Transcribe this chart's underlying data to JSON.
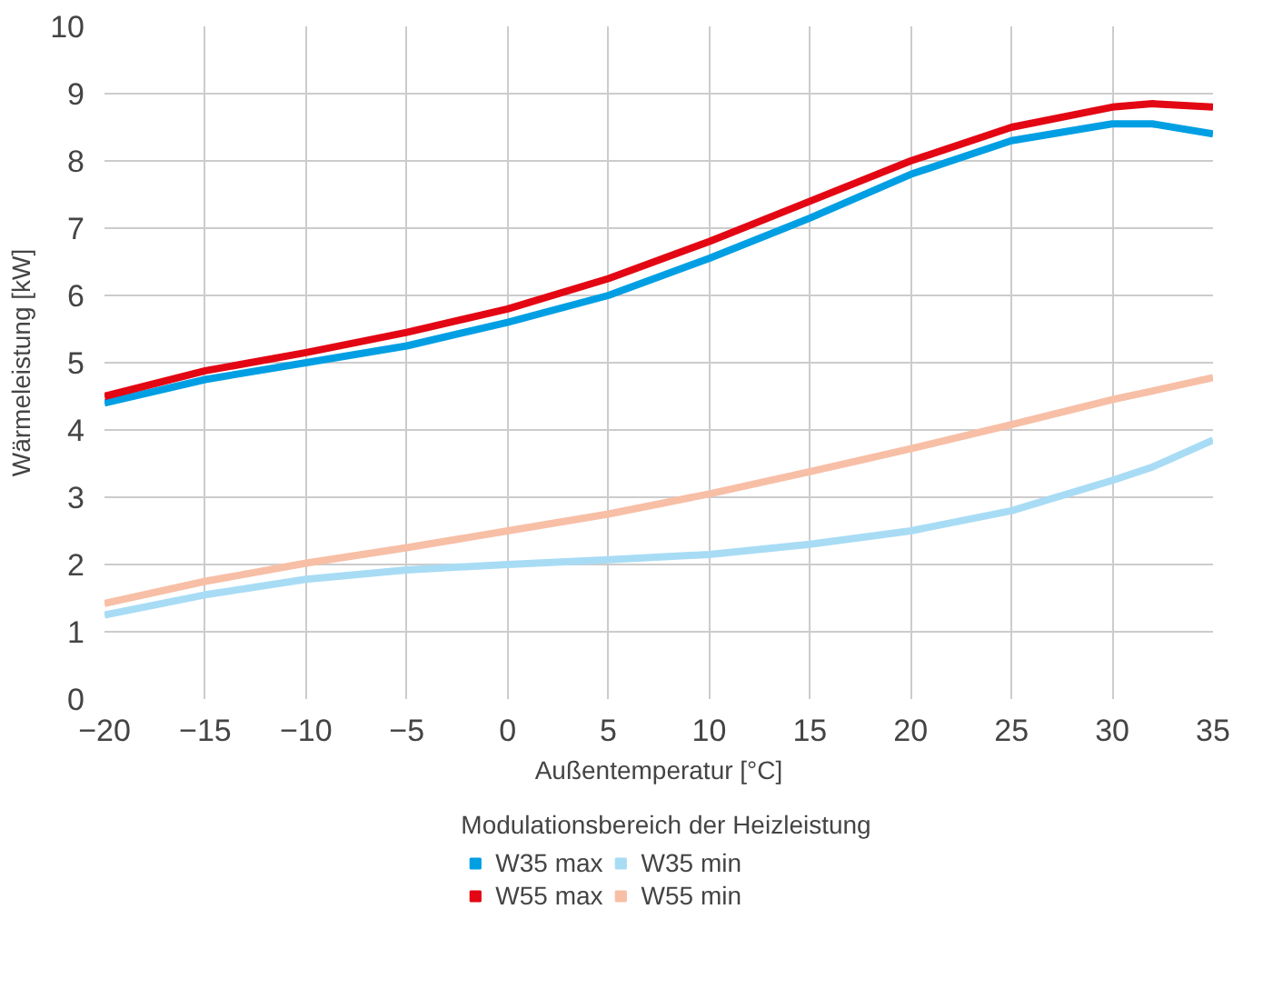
{
  "chart_data": {
    "type": "line",
    "xlabel": "Außentemperatur [°C]",
    "ylabel": "Wärmeleistung [kW]",
    "legend_title": "Modulationsbereich der Heizleistung",
    "x": [
      -20,
      -15,
      -10,
      -5,
      0,
      5,
      10,
      15,
      20,
      25,
      30,
      32,
      35
    ],
    "series": [
      {
        "name": "W35 max",
        "color": "#009fe3",
        "values": [
          4.4,
          4.75,
          5.0,
          5.25,
          5.6,
          6.0,
          6.55,
          7.15,
          7.8,
          8.3,
          8.55,
          8.55,
          8.4
        ]
      },
      {
        "name": "W55 max",
        "color": "#e30613",
        "values": [
          4.5,
          4.88,
          5.15,
          5.45,
          5.8,
          6.25,
          6.8,
          7.4,
          8.0,
          8.5,
          8.8,
          8.85,
          8.8
        ]
      },
      {
        "name": "W35 min",
        "color": "#a8dcf5",
        "values": [
          1.25,
          1.55,
          1.78,
          1.92,
          2.0,
          2.07,
          2.15,
          2.3,
          2.5,
          2.8,
          3.25,
          3.45,
          3.85
        ]
      },
      {
        "name": "W55 min",
        "color": "#f7bfa6",
        "values": [
          1.42,
          1.75,
          2.02,
          2.25,
          2.5,
          2.75,
          3.05,
          3.38,
          3.72,
          4.08,
          4.45,
          4.58,
          4.78
        ]
      }
    ],
    "xlim": [
      -20,
      35
    ],
    "xticks": [
      -20,
      -15,
      -10,
      -5,
      0,
      5,
      10,
      15,
      20,
      25,
      30,
      35
    ],
    "ylim": [
      0,
      10
    ],
    "yticks": [
      0,
      1,
      2,
      3,
      4,
      5,
      6,
      7,
      8,
      9,
      10
    ],
    "grid": true,
    "legend": "bottom",
    "marker": "none",
    "line_style": "solid"
  }
}
